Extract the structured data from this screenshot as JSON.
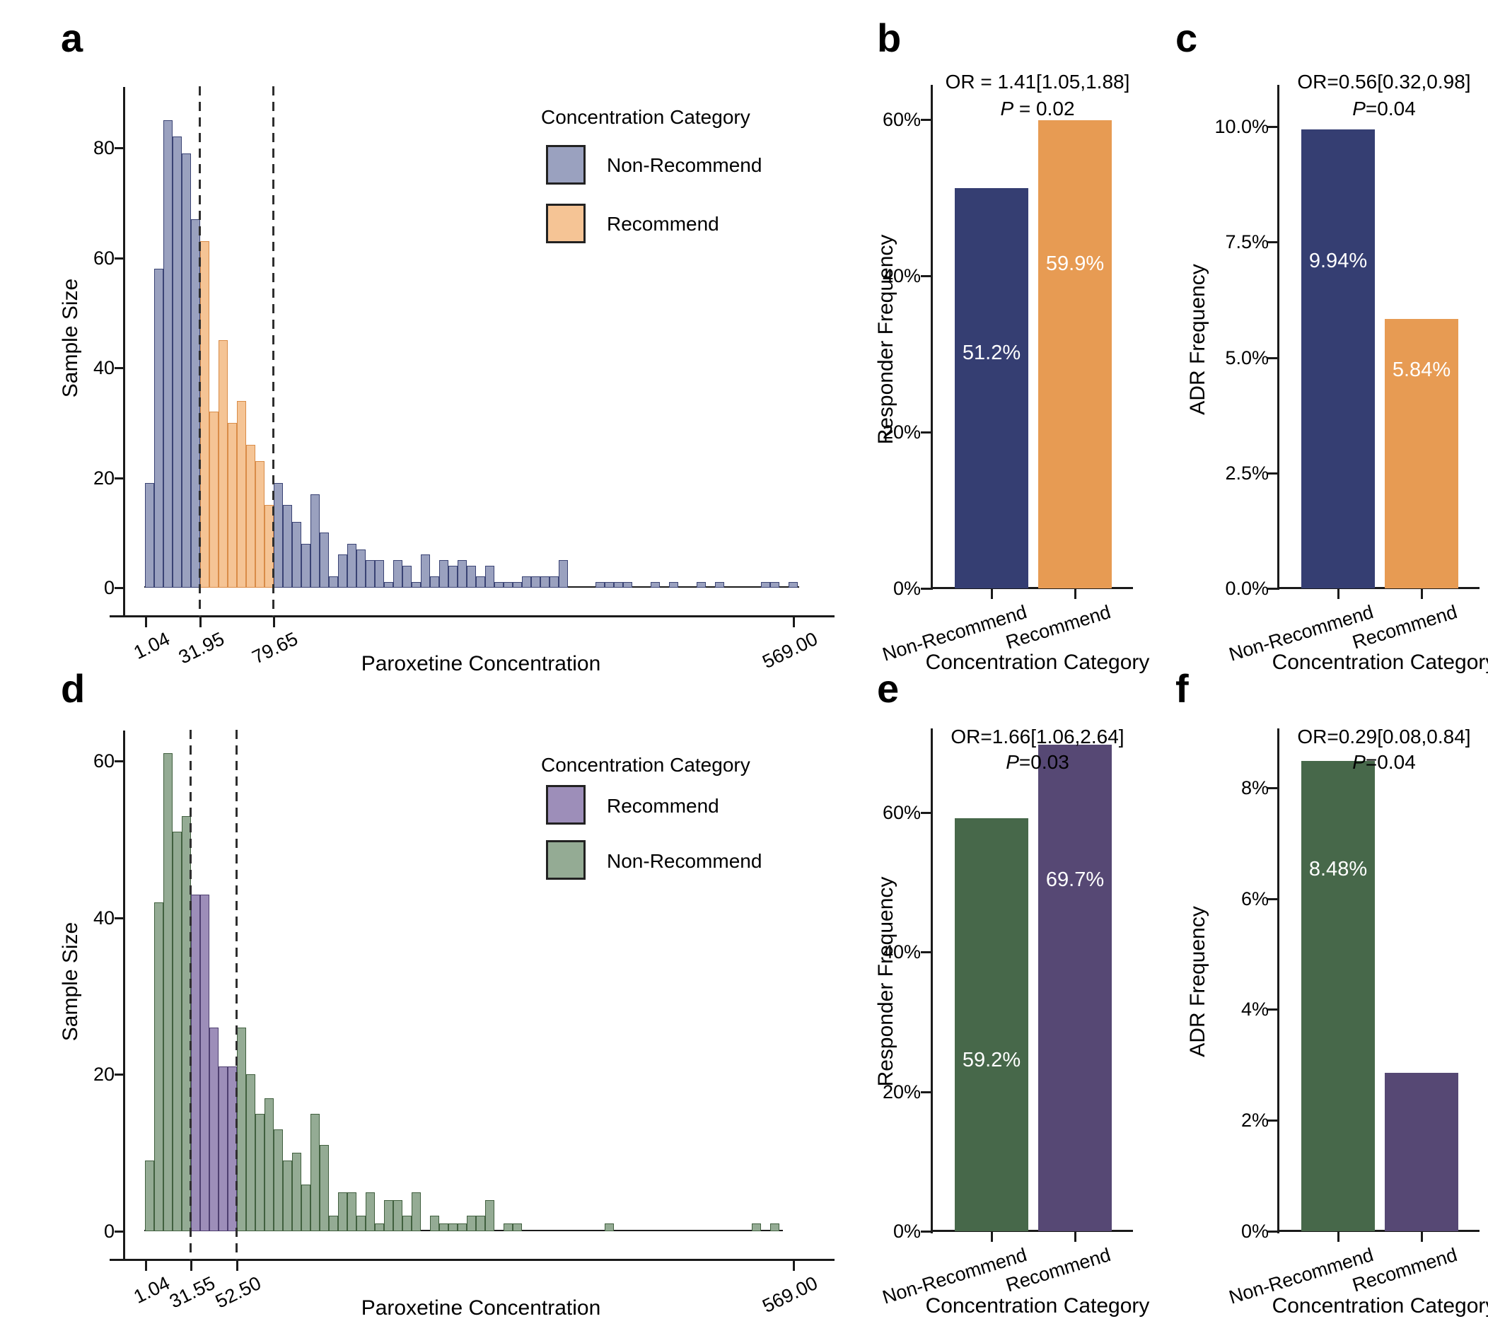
{
  "figure": {
    "panel_letters": [
      "a",
      "b",
      "c",
      "d",
      "e",
      "f"
    ]
  },
  "colors": {
    "navy": "#353e72",
    "orange": "#e79b53",
    "green": "#47684a",
    "purple": "#564874",
    "hist_blue_fill": "#9aa1bf",
    "hist_blue_border": "#3a4374",
    "hist_orange_fill": "#f5c495",
    "hist_orange_border": "#d98c48",
    "hist_green_fill": "#94ab94",
    "hist_green_border": "#41603f",
    "hist_purple_fill": "#9d8eb9",
    "hist_purple_border": "#4e3f70",
    "axis": "#1a1a1a"
  },
  "chart_data": [
    {
      "id": "a",
      "type": "histogram",
      "xlabel": "Paroxetine Concentration",
      "ylabel": "Sample Size",
      "ylim": [
        0,
        91
      ],
      "ytick_values": [
        0,
        20,
        40,
        60,
        80
      ],
      "ytick_labels": [
        "0",
        "20",
        "40",
        "60",
        "80"
      ],
      "xtick_labels": [
        "1.04",
        "31.95",
        "79.65",
        "569.00"
      ],
      "dashed_lines": [
        31.95,
        79.65
      ],
      "legend": {
        "title": "Concentration Category",
        "entries": [
          {
            "label": "Non-Recommend",
            "series": 0
          },
          {
            "label": "Recommend",
            "series": 1
          }
        ]
      },
      "series": [
        {
          "name": "Non-Recommend",
          "fill": "#9aa1bf",
          "border": "#3a4374"
        },
        {
          "name": "Recommend",
          "fill": "#f5c495",
          "border": "#d98c48"
        }
      ],
      "bin_series_runs": [
        [
          0,
          6
        ],
        [
          1,
          8
        ],
        [
          0,
          57
        ]
      ],
      "bin_heights": [
        19,
        58,
        85,
        82,
        79,
        67,
        63,
        32,
        45,
        30,
        34,
        26,
        23,
        15,
        19,
        15,
        12,
        8,
        17,
        10,
        2,
        6,
        8,
        7,
        5,
        5,
        1,
        5,
        4,
        1,
        6,
        2,
        5,
        4,
        5,
        4,
        2,
        4,
        1,
        1,
        1,
        2,
        2,
        2,
        2,
        5,
        0,
        0,
        0,
        1,
        1,
        1,
        1,
        0,
        0,
        1,
        0,
        1,
        0,
        0,
        1,
        0,
        1,
        0,
        0,
        0,
        0,
        1,
        1,
        0,
        1
      ]
    },
    {
      "id": "b",
      "type": "bar",
      "xlabel": "Concentration Category",
      "ylabel": "Responder Frequency",
      "categories": [
        "Non-Recommend",
        "Recommend"
      ],
      "values": [
        51.2,
        59.9
      ],
      "value_labels": [
        "51.2%",
        "59.9%"
      ],
      "bar_colors": [
        "#353e72",
        "#e79b53"
      ],
      "ylim": [
        0,
        66
      ],
      "ytick_values": [
        0,
        20,
        40,
        60
      ],
      "ytick_labels": [
        "0%",
        "20%",
        "40%",
        "60%"
      ],
      "annotation_or": "OR = 1.41[1.05,1.88]",
      "annotation_p_prefix": "P",
      "annotation_p_rest": " = 0.02"
    },
    {
      "id": "c",
      "type": "bar",
      "xlabel": "Concentration Category",
      "ylabel": "ADR Frequency",
      "categories": [
        "Non-Recommend",
        "Recommend"
      ],
      "values": [
        9.94,
        5.84
      ],
      "value_labels": [
        "9.94%",
        "5.84%"
      ],
      "bar_colors": [
        "#353e72",
        "#e79b53"
      ],
      "ylim": [
        0,
        11
      ],
      "ytick_values": [
        0,
        2.5,
        5,
        7.5,
        10
      ],
      "ytick_labels": [
        "0.0%",
        "2.5%",
        "5.0%",
        "7.5%",
        "10.0%"
      ],
      "annotation_or": "OR=0.56[0.32,0.98]",
      "annotation_p_prefix": "P",
      "annotation_p_rest": "=0.04"
    },
    {
      "id": "d",
      "type": "histogram",
      "xlabel": "Paroxetine Concentration",
      "ylabel": "Sample Size",
      "ylim": [
        0,
        64
      ],
      "ytick_values": [
        0,
        20,
        40,
        60
      ],
      "ytick_labels": [
        "0",
        "20",
        "40",
        "60"
      ],
      "xtick_labels": [
        "1.04",
        "31.55",
        "52.50",
        "569.00"
      ],
      "dashed_lines": [
        31.55,
        52.5
      ],
      "legend": {
        "title": "Concentration Category",
        "entries": [
          {
            "label": "Recommend",
            "series": 1
          },
          {
            "label": "Non-Recommend",
            "series": 0
          }
        ]
      },
      "series": [
        {
          "name": "Non-Recommend",
          "fill": "#94ab94",
          "border": "#41603f"
        },
        {
          "name": "Recommend",
          "fill": "#9d8eb9",
          "border": "#4e3f70"
        }
      ],
      "bin_series_runs": [
        [
          0,
          5
        ],
        [
          1,
          5
        ],
        [
          0,
          61
        ]
      ],
      "bin_heights": [
        9,
        42,
        61,
        51,
        53,
        43,
        43,
        26,
        21,
        21,
        26,
        20,
        15,
        17,
        13,
        9,
        10,
        6,
        15,
        11,
        2,
        5,
        5,
        2,
        5,
        1,
        4,
        4,
        2,
        5,
        0,
        2,
        1,
        1,
        1,
        2,
        2,
        4,
        0,
        1,
        1,
        0,
        0,
        0,
        0,
        0,
        0,
        0,
        0,
        0,
        1,
        0,
        0,
        0,
        0,
        0,
        0,
        0,
        0,
        0,
        0,
        0,
        0,
        0,
        0,
        0,
        1,
        0,
        1,
        0,
        0
      ]
    },
    {
      "id": "e",
      "type": "bar",
      "xlabel": "Concentration Category",
      "ylabel": "Responder Frequency",
      "categories": [
        "Non-Recommend",
        "Recommend"
      ],
      "values": [
        59.2,
        69.7
      ],
      "value_labels": [
        "59.2%",
        "69.7%"
      ],
      "bar_colors": [
        "#47684a",
        "#564874"
      ],
      "ylim": [
        0,
        72
      ],
      "ytick_values": [
        0,
        20,
        40,
        60
      ],
      "ytick_labels": [
        "0%",
        "20%",
        "40%",
        "60%"
      ],
      "annotation_or": "OR=1.66[1.06,2.64]",
      "annotation_p_prefix": "P",
      "annotation_p_rest": "=0.03"
    },
    {
      "id": "f",
      "type": "bar",
      "xlabel": "Concentration Category",
      "ylabel": "ADR Frequency",
      "categories": [
        "Non-Recommend",
        "Recommend"
      ],
      "values": [
        8.48,
        2.86
      ],
      "value_labels": [
        "8.48%",
        "2.86%"
      ],
      "bar_colors": [
        "#47684a",
        "#564874"
      ],
      "ylim": [
        0,
        9
      ],
      "ytick_values": [
        0,
        2,
        4,
        6,
        8
      ],
      "ytick_labels": [
        "0%",
        "2%",
        "4%",
        "6%",
        "8%"
      ],
      "annotation_or": "OR=0.29[0.08,0.84]",
      "annotation_p_prefix": "P",
      "annotation_p_rest": "=0.04"
    }
  ]
}
